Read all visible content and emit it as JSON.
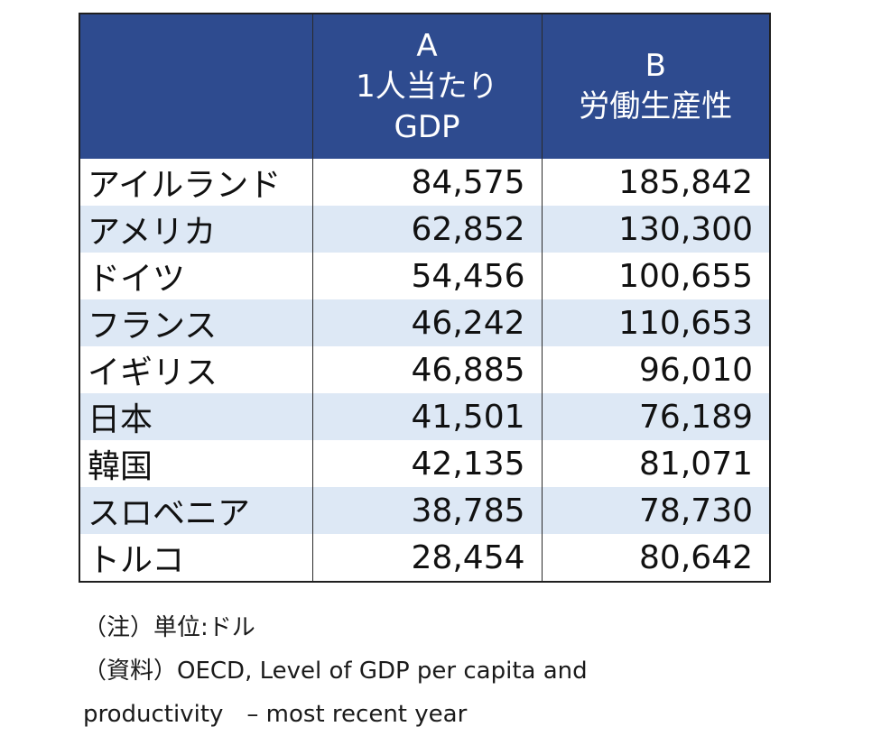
{
  "table": {
    "headers": {
      "col_a_line1": "A",
      "col_a_line2": "1人当たり",
      "col_a_line3": "GDP",
      "col_b_line1": "B",
      "col_b_line2": "労働生産性"
    },
    "rows": [
      {
        "country": "アイルランド",
        "gdp": "84,575",
        "productivity": "185,842"
      },
      {
        "country": "アメリカ",
        "gdp": "62,852",
        "productivity": "130,300"
      },
      {
        "country": "ドイツ",
        "gdp": "54,456",
        "productivity": "100,655"
      },
      {
        "country": "フランス",
        "gdp": "46,242",
        "productivity": "110,653"
      },
      {
        "country": "イギリス",
        "gdp": "46,885",
        "productivity": "96,010"
      },
      {
        "country": "日本",
        "gdp": "41,501",
        "productivity": "76,189"
      },
      {
        "country": "韓国",
        "gdp": "42,135",
        "productivity": "81,071"
      },
      {
        "country": "スロベニア",
        "gdp": "38,785",
        "productivity": "78,730"
      },
      {
        "country": "トルコ",
        "gdp": "28,454",
        "productivity": "80,642"
      }
    ]
  },
  "notes": {
    "unit": "（注）単位:ドル",
    "source_line1": "（資料）OECD, Level of GDP per capita and",
    "source_line2": "productivity　– most recent year"
  },
  "colors": {
    "header_bg": "#2e4b8f",
    "stripe_bg": "#dde8f5"
  }
}
